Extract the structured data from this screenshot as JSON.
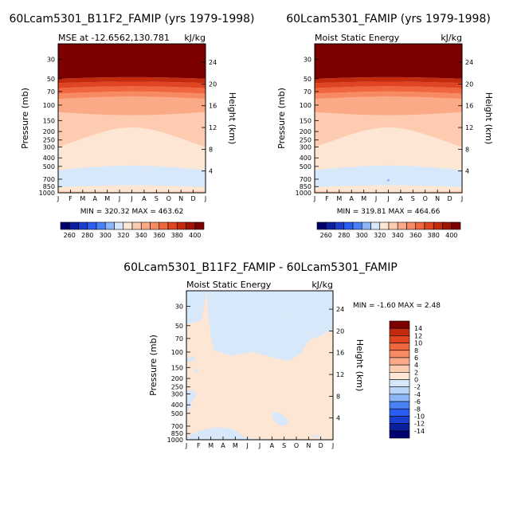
{
  "panels": [
    {
      "title": "60Lcam5301_B11F2_FAMIP (yrs 1979-1998)",
      "subtitle_left": "MSE at -12.6562,130.781",
      "subtitle_right": "kJ/kg",
      "ylabel": "Pressure (mb)",
      "y2label": "Height (km)",
      "minmax": "MIN = 320.32  MAX = 463.62",
      "months": [
        "J",
        "F",
        "M",
        "A",
        "M",
        "J",
        "J",
        "A",
        "S",
        "O",
        "N",
        "D",
        "J"
      ],
      "pressure_ticks": [
        "30",
        "50",
        "70",
        "100",
        "150",
        "200",
        "250",
        "300",
        "400",
        "500",
        "700",
        "850",
        "1000"
      ],
      "height_ticks": [
        "24",
        "20",
        "16",
        "12",
        "8",
        "4"
      ],
      "colorbar_labels": [
        "260",
        "280",
        "300",
        "320",
        "340",
        "360",
        "380",
        "400"
      ]
    },
    {
      "title": "60Lcam5301_FAMIP (yrs 1979-1998)",
      "subtitle_left": "Moist Static Energy",
      "subtitle_right": "kJ/kg",
      "ylabel": "Pressure (mb)",
      "y2label": "Height (km)",
      "minmax": "MIN = 319.81  MAX = 464.66",
      "months": [
        "J",
        "F",
        "M",
        "A",
        "M",
        "J",
        "J",
        "A",
        "S",
        "O",
        "N",
        "D",
        "J"
      ],
      "pressure_ticks": [
        "30",
        "50",
        "70",
        "100",
        "150",
        "200",
        "250",
        "300",
        "400",
        "500",
        "700",
        "850",
        "1000"
      ],
      "height_ticks": [
        "24",
        "20",
        "16",
        "12",
        "8",
        "4"
      ],
      "colorbar_labels": [
        "260",
        "280",
        "300",
        "320",
        "340",
        "360",
        "380",
        "400"
      ]
    },
    {
      "title": "60Lcam5301_B11F2_FAMIP - 60Lcam5301_FAMIP",
      "subtitle_left": "Moist Static Energy",
      "subtitle_right": "kJ/kg",
      "ylabel": "Pressure (mb)",
      "y2label": "Height (km)",
      "minmax": "MIN = -1.60  MAX =   2.48",
      "months": [
        "J",
        "F",
        "M",
        "A",
        "M",
        "J",
        "J",
        "A",
        "S",
        "O",
        "N",
        "D",
        "J"
      ],
      "pressure_ticks": [
        "30",
        "50",
        "70",
        "100",
        "150",
        "200",
        "250",
        "300",
        "400",
        "500",
        "700",
        "850",
        "1000"
      ],
      "height_ticks": [
        "24",
        "20",
        "16",
        "12",
        "8",
        "4"
      ],
      "colorbar_labels": [
        "14",
        "12",
        "10",
        "8",
        "6",
        "4",
        "2",
        "0",
        "-2",
        "-4",
        "-6",
        "-8",
        "-10",
        "-12",
        "-14"
      ]
    }
  ],
  "chart_data": [
    {
      "type": "heatmap",
      "title": "60Lcam5301_B11F2_FAMIP (yrs 1979-1998)",
      "subtitle": "MSE at -12.6562,130.781",
      "units": "kJ/kg",
      "xlabel": "",
      "x": [
        "J",
        "F",
        "M",
        "A",
        "M",
        "J",
        "J",
        "A",
        "S",
        "O",
        "N",
        "D",
        "J"
      ],
      "ylabel": "Pressure (mb)",
      "y_scale": "log",
      "ylim": [
        1000,
        20
      ],
      "y2label": "Height (km)",
      "levels": [
        260,
        270,
        280,
        290,
        300,
        310,
        320,
        330,
        340,
        350,
        360,
        370,
        380,
        390,
        400
      ],
      "min": 320.32,
      "max": 463.62,
      "field_description_by_level": [
        {
          "pressure": 30,
          "value": 460
        },
        {
          "pressure": 50,
          "value": 410
        },
        {
          "pressure": 70,
          "value": 375
        },
        {
          "pressure": 100,
          "value": 355
        },
        {
          "pressure": 200,
          "value": 345
        },
        {
          "pressure": 400,
          "value": 333
        },
        {
          "pressure": 600,
          "value": 327
        },
        {
          "pressure": 850,
          "value": 332
        },
        {
          "pressure": 1000,
          "value": 345
        }
      ]
    },
    {
      "type": "heatmap",
      "title": "60Lcam5301_FAMIP (yrs 1979-1998)",
      "subtitle": "Moist Static Energy",
      "units": "kJ/kg",
      "xlabel": "",
      "x": [
        "J",
        "F",
        "M",
        "A",
        "M",
        "J",
        "J",
        "A",
        "S",
        "O",
        "N",
        "D",
        "J"
      ],
      "ylabel": "Pressure (mb)",
      "y_scale": "log",
      "ylim": [
        1000,
        20
      ],
      "y2label": "Height (km)",
      "levels": [
        260,
        270,
        280,
        290,
        300,
        310,
        320,
        330,
        340,
        350,
        360,
        370,
        380,
        390,
        400
      ],
      "min": 319.81,
      "max": 464.66,
      "field_description_by_level": [
        {
          "pressure": 30,
          "value": 461
        },
        {
          "pressure": 50,
          "value": 410
        },
        {
          "pressure": 70,
          "value": 375
        },
        {
          "pressure": 100,
          "value": 355
        },
        {
          "pressure": 200,
          "value": 345
        },
        {
          "pressure": 400,
          "value": 333
        },
        {
          "pressure": 600,
          "value": 327
        },
        {
          "pressure": 850,
          "value": 332
        },
        {
          "pressure": 1000,
          "value": 345
        }
      ]
    },
    {
      "type": "heatmap",
      "title": "60Lcam5301_B11F2_FAMIP - 60Lcam5301_FAMIP",
      "subtitle": "Moist Static Energy",
      "units": "kJ/kg",
      "x": [
        "J",
        "F",
        "M",
        "A",
        "M",
        "J",
        "J",
        "A",
        "S",
        "O",
        "N",
        "D",
        "J"
      ],
      "ylabel": "Pressure (mb)",
      "y_scale": "log",
      "ylim": [
        1000,
        20
      ],
      "y2label": "Height (km)",
      "levels": [
        -14,
        -12,
        -10,
        -8,
        -6,
        -4,
        -2,
        0,
        2,
        4,
        6,
        8,
        10,
        12,
        14
      ],
      "min": -1.6,
      "max": 2.48,
      "dominant_ranges": [
        "0 to 2",
        "-2 to 0"
      ]
    }
  ],
  "colors": {
    "full_scale": [
      "#00006e",
      "#0a1f9e",
      "#1a3fd0",
      "#2a5ef0",
      "#4a80f5",
      "#8cb6f8",
      "#d6e8fa",
      "#fde6d4",
      "#fccbb0",
      "#fbaa88",
      "#f88a63",
      "#f0663e",
      "#df4520",
      "#c42a0e",
      "#a01406",
      "#7d0000"
    ],
    "diff_scale": [
      "#00006e",
      "#0a1f9e",
      "#1a3fd0",
      "#2a5ef0",
      "#4a80f5",
      "#8cb6f8",
      "#b9d6fa",
      "#d6e8fa",
      "#fde6d4",
      "#fccbb0",
      "#fbaa88",
      "#f88a63",
      "#f0663e",
      "#df4520",
      "#c42a0e",
      "#7d0000"
    ]
  }
}
